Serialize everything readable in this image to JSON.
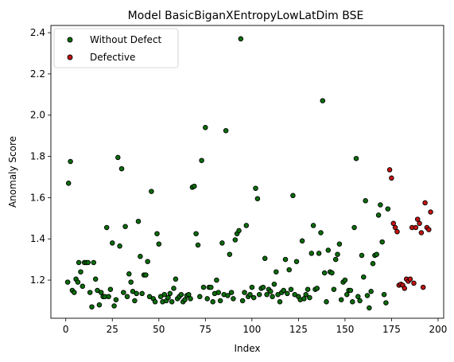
{
  "chart_data": {
    "type": "scatter",
    "title": "Model BasicBiganXEntropyLowLatDim BSE",
    "xlabel": "Index",
    "ylabel": "Anomaly Score",
    "xlim": [
      -8,
      203
    ],
    "ylim": [
      1.015,
      2.435
    ],
    "xticks": [
      0,
      25,
      50,
      75,
      100,
      125,
      150,
      175,
      200
    ],
    "yticks": [
      1.2,
      1.4,
      1.6,
      1.8,
      2.0,
      2.2,
      2.4
    ],
    "ytick_labels": [
      "1.2",
      "1.4",
      "1.6",
      "1.8",
      "2.0",
      "2.2",
      "2.4"
    ],
    "grid": false,
    "legend_position": "upper-left",
    "series": [
      {
        "name": "Without Defect",
        "color": "#0b6e0b",
        "points": [
          [
            1,
            1.19
          ],
          [
            1.5,
            1.67
          ],
          [
            2.5,
            1.775
          ],
          [
            3.5,
            1.15
          ],
          [
            4.5,
            1.14
          ],
          [
            5.5,
            1.205
          ],
          [
            6.5,
            1.19
          ],
          [
            7,
            1.285
          ],
          [
            8,
            1.24
          ],
          [
            9,
            1.17
          ],
          [
            10,
            1.285
          ],
          [
            11,
            1.285
          ],
          [
            12,
            1.285
          ],
          [
            13,
            1.14
          ],
          [
            14,
            1.07
          ],
          [
            15,
            1.285
          ],
          [
            16,
            1.205
          ],
          [
            17,
            1.15
          ],
          [
            18,
            1.08
          ],
          [
            19,
            1.14
          ],
          [
            20,
            1.12
          ],
          [
            21,
            1.12
          ],
          [
            22,
            1.455
          ],
          [
            23,
            1.12
          ],
          [
            24,
            1.155
          ],
          [
            25,
            1.38
          ],
          [
            26,
            1.075
          ],
          [
            27,
            1.105
          ],
          [
            28,
            1.795
          ],
          [
            29,
            1.365
          ],
          [
            30,
            1.74
          ],
          [
            31,
            1.14
          ],
          [
            32,
            1.46
          ],
          [
            33,
            1.12
          ],
          [
            34,
            1.23
          ],
          [
            35,
            1.19
          ],
          [
            36,
            1.145
          ],
          [
            37,
            1.1
          ],
          [
            38,
            1.135
          ],
          [
            39,
            1.485
          ],
          [
            40,
            1.315
          ],
          [
            41,
            1.135
          ],
          [
            42,
            1.225
          ],
          [
            43,
            1.225
          ],
          [
            44,
            1.29
          ],
          [
            45,
            1.12
          ],
          [
            46,
            1.63
          ],
          [
            47,
            1.11
          ],
          [
            48,
            1.095
          ],
          [
            49,
            1.425
          ],
          [
            50,
            1.375
          ],
          [
            51,
            1.12
          ],
          [
            52,
            1.095
          ],
          [
            53,
            1.13
          ],
          [
            54,
            1.1
          ],
          [
            55,
            1.115
          ],
          [
            56,
            1.135
          ],
          [
            57,
            1.095
          ],
          [
            58,
            1.16
          ],
          [
            59,
            1.205
          ],
          [
            60,
            1.11
          ],
          [
            61,
            1.12
          ],
          [
            62,
            1.13
          ],
          [
            63,
            1.095
          ],
          [
            64,
            1.105
          ],
          [
            65,
            1.125
          ],
          [
            66,
            1.13
          ],
          [
            67,
            1.11
          ],
          [
            68,
            1.65
          ],
          [
            69,
            1.655
          ],
          [
            70,
            1.425
          ],
          [
            71,
            1.37
          ],
          [
            72,
            1.12
          ],
          [
            73,
            1.78
          ],
          [
            74,
            1.165
          ],
          [
            75,
            1.94
          ],
          [
            76,
            1.11
          ],
          [
            77,
            1.165
          ],
          [
            78,
            1.165
          ],
          [
            79,
            1.095
          ],
          [
            80,
            1.135
          ],
          [
            81,
            1.2
          ],
          [
            82,
            1.14
          ],
          [
            83,
            1.1
          ],
          [
            84,
            1.38
          ],
          [
            85,
            1.13
          ],
          [
            86,
            1.925
          ],
          [
            87,
            1.125
          ],
          [
            88,
            1.325
          ],
          [
            89,
            1.14
          ],
          [
            90,
            1.11
          ],
          [
            91,
            1.395
          ],
          [
            92,
            1.425
          ],
          [
            93,
            1.44
          ],
          [
            94,
            2.37
          ],
          [
            95,
            1.1
          ],
          [
            96,
            1.14
          ],
          [
            97,
            1.465
          ],
          [
            98,
            1.12
          ],
          [
            99,
            1.13
          ],
          [
            100,
            1.165
          ],
          [
            101,
            1.115
          ],
          [
            102,
            1.645
          ],
          [
            103,
            1.595
          ],
          [
            104,
            1.13
          ],
          [
            105,
            1.16
          ],
          [
            106,
            1.165
          ],
          [
            107,
            1.305
          ],
          [
            108,
            1.13
          ],
          [
            109,
            1.155
          ],
          [
            110,
            1.145
          ],
          [
            111,
            1.12
          ],
          [
            112,
            1.18
          ],
          [
            113,
            1.24
          ],
          [
            114,
            1.13
          ],
          [
            115,
            1.095
          ],
          [
            116,
            1.14
          ],
          [
            117,
            1.15
          ],
          [
            118,
            1.3
          ],
          [
            119,
            1.135
          ],
          [
            120,
            1.25
          ],
          [
            121,
            1.155
          ],
          [
            122,
            1.61
          ],
          [
            123,
            1.13
          ],
          [
            124,
            1.29
          ],
          [
            125,
            1.12
          ],
          [
            126,
            1.105
          ],
          [
            127,
            1.39
          ],
          [
            128,
            1.11
          ],
          [
            129,
            1.13
          ],
          [
            130,
            1.155
          ],
          [
            131,
            1.115
          ],
          [
            132,
            1.33
          ],
          [
            133,
            1.465
          ],
          [
            134,
            1.155
          ],
          [
            135,
            1.16
          ],
          [
            136,
            1.33
          ],
          [
            137,
            1.43
          ],
          [
            138,
            2.07
          ],
          [
            139,
            1.235
          ],
          [
            140,
            1.095
          ],
          [
            141,
            1.345
          ],
          [
            142,
            1.24
          ],
          [
            143,
            1.235
          ],
          [
            144,
            1.155
          ],
          [
            145,
            1.3
          ],
          [
            146,
            1.325
          ],
          [
            147,
            1.375
          ],
          [
            148,
            1.105
          ],
          [
            149,
            1.19
          ],
          [
            150,
            1.2
          ],
          [
            151,
            1.13
          ],
          [
            152,
            1.15
          ],
          [
            153,
            1.15
          ],
          [
            154,
            1.095
          ],
          [
            155,
            1.455
          ],
          [
            156,
            1.79
          ],
          [
            157,
            1.12
          ],
          [
            158,
            1.1
          ],
          [
            159,
            1.32
          ],
          [
            160,
            1.215
          ],
          [
            161,
            1.585
          ],
          [
            162,
            1.125
          ],
          [
            163,
            1.065
          ],
          [
            164,
            1.145
          ],
          [
            165,
            1.28
          ],
          [
            166,
            1.32
          ],
          [
            167,
            1.325
          ],
          [
            168,
            1.515
          ],
          [
            169,
            1.565
          ],
          [
            170,
            1.385
          ],
          [
            171,
            1.13
          ],
          [
            172,
            1.09
          ],
          [
            173,
            1.545
          ]
        ]
      },
      {
        "name": "Defective",
        "color": "#c41414",
        "points": [
          [
            174,
            1.735
          ],
          [
            175,
            1.695
          ],
          [
            176,
            1.475
          ],
          [
            177,
            1.455
          ],
          [
            178,
            1.435
          ],
          [
            179,
            1.175
          ],
          [
            180,
            1.18
          ],
          [
            181,
            1.175
          ],
          [
            182,
            1.16
          ],
          [
            183,
            1.205
          ],
          [
            184,
            1.195
          ],
          [
            185,
            1.205
          ],
          [
            186,
            1.455
          ],
          [
            187,
            1.185
          ],
          [
            188,
            1.455
          ],
          [
            189,
            1.495
          ],
          [
            190,
            1.475
          ],
          [
            191,
            1.43
          ],
          [
            192,
            1.165
          ],
          [
            193,
            1.575
          ],
          [
            194,
            1.455
          ],
          [
            195,
            1.445
          ],
          [
            196,
            1.53
          ]
        ]
      }
    ]
  }
}
